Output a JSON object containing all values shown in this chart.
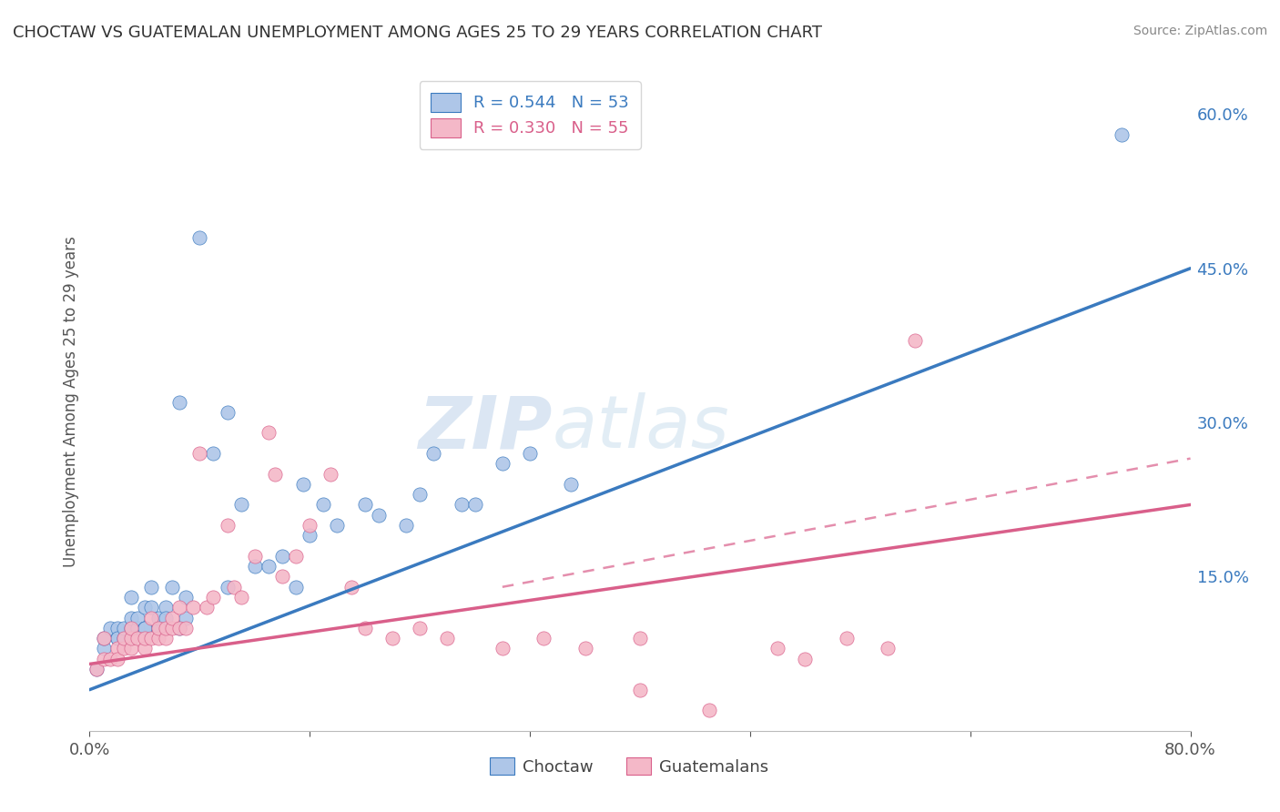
{
  "title": "CHOCTAW VS GUATEMALAN UNEMPLOYMENT AMONG AGES 25 TO 29 YEARS CORRELATION CHART",
  "source": "Source: ZipAtlas.com",
  "ylabel": "Unemployment Among Ages 25 to 29 years",
  "xlim": [
    0.0,
    0.8
  ],
  "ylim": [
    0.0,
    0.64
  ],
  "x_ticks": [
    0.0,
    0.16,
    0.32,
    0.48,
    0.64,
    0.8
  ],
  "x_tick_labels": [
    "0.0%",
    "",
    "",
    "",
    "",
    "80.0%"
  ],
  "y_ticks_right": [
    0.0,
    0.15,
    0.3,
    0.45,
    0.6
  ],
  "y_tick_labels_right": [
    "",
    "15.0%",
    "30.0%",
    "45.0%",
    "60.0%"
  ],
  "watermark_zip": "ZIP",
  "watermark_atlas": "atlas",
  "legend_blue_label": "R = 0.544   N = 53",
  "legend_pink_label": "R = 0.330   N = 55",
  "legend_bottom_blue": "Choctaw",
  "legend_bottom_pink": "Guatemalans",
  "blue_scatter_color": "#aec6e8",
  "pink_scatter_color": "#f4b8c8",
  "blue_line_color": "#3a7abf",
  "pink_line_color": "#d95f8a",
  "blue_legend_color": "#aec6e8",
  "pink_legend_color": "#f4b8c8",
  "choctaw_x": [
    0.005,
    0.01,
    0.01,
    0.015,
    0.02,
    0.02,
    0.02,
    0.025,
    0.025,
    0.03,
    0.03,
    0.03,
    0.035,
    0.035,
    0.04,
    0.04,
    0.04,
    0.04,
    0.045,
    0.045,
    0.05,
    0.05,
    0.055,
    0.055,
    0.06,
    0.065,
    0.065,
    0.07,
    0.07,
    0.08,
    0.09,
    0.1,
    0.1,
    0.11,
    0.12,
    0.13,
    0.14,
    0.15,
    0.155,
    0.16,
    0.17,
    0.18,
    0.2,
    0.21,
    0.23,
    0.24,
    0.25,
    0.27,
    0.28,
    0.3,
    0.32,
    0.35,
    0.75
  ],
  "choctaw_y": [
    0.06,
    0.08,
    0.09,
    0.1,
    0.09,
    0.1,
    0.09,
    0.09,
    0.1,
    0.1,
    0.11,
    0.13,
    0.1,
    0.11,
    0.1,
    0.1,
    0.12,
    0.1,
    0.12,
    0.14,
    0.1,
    0.11,
    0.12,
    0.11,
    0.14,
    0.1,
    0.32,
    0.11,
    0.13,
    0.48,
    0.27,
    0.14,
    0.31,
    0.22,
    0.16,
    0.16,
    0.17,
    0.14,
    0.24,
    0.19,
    0.22,
    0.2,
    0.22,
    0.21,
    0.2,
    0.23,
    0.27,
    0.22,
    0.22,
    0.26,
    0.27,
    0.24,
    0.58
  ],
  "guatemalan_x": [
    0.005,
    0.01,
    0.01,
    0.015,
    0.02,
    0.02,
    0.025,
    0.025,
    0.03,
    0.03,
    0.03,
    0.035,
    0.04,
    0.04,
    0.045,
    0.045,
    0.05,
    0.05,
    0.055,
    0.055,
    0.06,
    0.06,
    0.065,
    0.065,
    0.07,
    0.075,
    0.08,
    0.085,
    0.09,
    0.1,
    0.105,
    0.11,
    0.12,
    0.13,
    0.135,
    0.14,
    0.15,
    0.16,
    0.175,
    0.19,
    0.2,
    0.22,
    0.24,
    0.26,
    0.3,
    0.33,
    0.36,
    0.4,
    0.45,
    0.5,
    0.52,
    0.55,
    0.58,
    0.6,
    0.4
  ],
  "guatemalan_y": [
    0.06,
    0.07,
    0.09,
    0.07,
    0.08,
    0.07,
    0.08,
    0.09,
    0.08,
    0.09,
    0.1,
    0.09,
    0.08,
    0.09,
    0.09,
    0.11,
    0.09,
    0.1,
    0.09,
    0.1,
    0.1,
    0.11,
    0.12,
    0.1,
    0.1,
    0.12,
    0.27,
    0.12,
    0.13,
    0.2,
    0.14,
    0.13,
    0.17,
    0.29,
    0.25,
    0.15,
    0.17,
    0.2,
    0.25,
    0.14,
    0.1,
    0.09,
    0.1,
    0.09,
    0.08,
    0.09,
    0.08,
    0.04,
    0.02,
    0.08,
    0.07,
    0.09,
    0.08,
    0.38,
    0.09
  ],
  "blue_trend_x": [
    0.0,
    0.8
  ],
  "blue_trend_y": [
    0.04,
    0.45
  ],
  "pink_trend_x": [
    0.0,
    0.8
  ],
  "pink_trend_y": [
    0.065,
    0.22
  ],
  "pink_dashed_trend_x": [
    0.3,
    0.8
  ],
  "pink_dashed_trend_y": [
    0.14,
    0.265
  ],
  "background_color": "#ffffff",
  "grid_color": "#cccccc"
}
